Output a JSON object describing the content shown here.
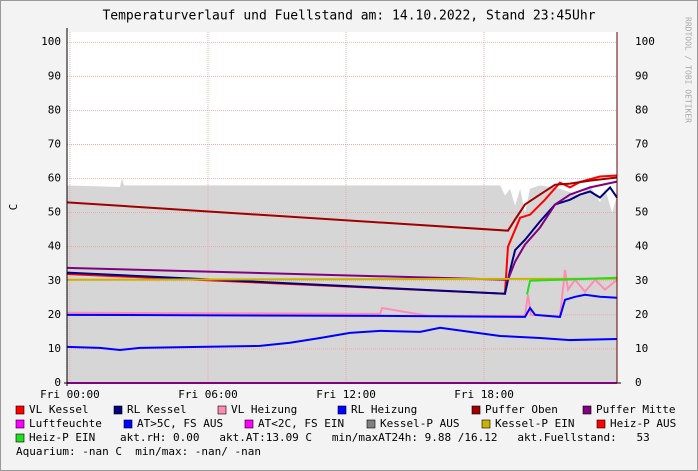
{
  "chart_data": {
    "type": "line",
    "title": "Temperaturverlauf und Fuellstand am: 14.10.2022, Stand 23:45Uhr",
    "watermark": "RRDTOOL / TOBI OETIKER",
    "ylabel": "C",
    "xlim": [
      -0.13,
      23.78
    ],
    "ylim": [
      0,
      103
    ],
    "xticks": [
      {
        "value": 0,
        "label": "Fri 00:00"
      },
      {
        "value": 6,
        "label": "Fri 06:00"
      },
      {
        "value": 12,
        "label": "Fri 12:00"
      },
      {
        "value": 18,
        "label": "Fri 18:00"
      }
    ],
    "yticks": [
      0,
      10,
      20,
      30,
      40,
      50,
      60,
      70,
      80,
      90,
      100
    ],
    "grid": true,
    "area": {
      "color": "#d6d6d6",
      "x": [
        -0.13,
        2.17,
        2.26,
        2.35,
        10,
        18.7,
        18.91,
        19.13,
        19.35,
        19.57,
        19.78,
        20,
        20.43,
        21.3,
        22.17,
        22.61,
        23.04,
        23.26,
        23.57,
        23.78
      ],
      "values": [
        58,
        57.5,
        60,
        58,
        58,
        58,
        55,
        57,
        52,
        57,
        50,
        57,
        58,
        57,
        55,
        58,
        53,
        57,
        50,
        55
      ]
    },
    "series": [
      {
        "name": "VL Kessel",
        "color": "#ff0000",
        "x": [
          -0.13,
          18.91,
          19.04,
          19.57,
          20,
          20.65,
          21.3,
          21.74,
          22.17,
          23.04,
          23.78
        ],
        "values": [
          32,
          26.2,
          40,
          48.5,
          49.4,
          53.8,
          58.8,
          57.4,
          59,
          60.6,
          60.9
        ]
      },
      {
        "name": "RL Kessel",
        "color": "#000080",
        "x": [
          -0.13,
          18.91,
          19.13,
          19.35,
          19.78,
          20.43,
          21.09,
          21.74,
          22.17,
          22.61,
          23.04,
          23.48,
          23.78
        ],
        "values": [
          32.4,
          26.2,
          33,
          39,
          42,
          47.4,
          52.4,
          53.8,
          55.3,
          56.2,
          54.4,
          57.4,
          54.4
        ]
      },
      {
        "name": "VL Heizung",
        "color": "#ff8cb4",
        "x": [
          -0.13,
          13.48,
          13.57,
          14.78,
          15.65,
          19.78,
          19.91,
          20.04,
          21.3,
          21.52,
          21.65,
          21.96,
          22.39,
          22.83,
          23.26,
          23.78
        ],
        "values": [
          20.6,
          20.3,
          22,
          20.6,
          19.7,
          19.7,
          25.9,
          20,
          19.4,
          33.2,
          27.4,
          30.3,
          26.8,
          30.3,
          27.4,
          30.3
        ]
      },
      {
        "name": "RL Heizung",
        "color": "#0000ff",
        "x": [
          -0.13,
          13.48,
          19.78,
          20,
          20.22,
          21.3,
          21.52,
          21.96,
          22.39,
          23.04,
          23.78
        ],
        "values": [
          20,
          19.7,
          19.4,
          22,
          20,
          19.4,
          24.4,
          25.3,
          25.9,
          25.3,
          25
        ]
      },
      {
        "name": "Puffer Oben",
        "color": "#a00000",
        "x": [
          -0.13,
          19.04,
          19.35,
          19.78,
          20.43,
          21.09,
          21.74,
          22.61,
          23.78
        ],
        "values": [
          53,
          44.7,
          48,
          52.4,
          55.3,
          58.2,
          58.5,
          59.4,
          60.3
        ]
      },
      {
        "name": "Puffer Mitte",
        "color": "#800080",
        "x": [
          -0.13,
          19.04,
          19.35,
          19.78,
          20.43,
          21.09,
          21.74,
          22.61,
          23.78
        ],
        "values": [
          33.8,
          30.3,
          35.6,
          40.6,
          45.6,
          52.4,
          55.3,
          57.4,
          59.1
        ]
      },
      {
        "name": "Luftfeuchte",
        "color": "#ff00ff",
        "x": [
          -0.13,
          23.78
        ],
        "values": [
          0,
          0
        ]
      },
      {
        "name": "AT>5C, FS AUS",
        "color": "#0000ff",
        "x": [
          -0.13,
          1.3,
          2.17,
          3.04,
          5.65,
          8.26,
          9.57,
          10.87,
          12.17,
          13.48,
          15.22,
          16.09,
          17.39,
          18.7,
          20.43,
          21.74,
          23.78
        ],
        "values": [
          10.6,
          10.3,
          9.7,
          10.3,
          10.6,
          10.9,
          11.8,
          13.2,
          14.7,
          15.3,
          15,
          16.2,
          15,
          13.8,
          13.2,
          12.6,
          12.9
        ]
      },
      {
        "name": "AT<2C, FS EIN",
        "color": "#ff00ff",
        "x": [],
        "values": []
      },
      {
        "name": "Kessel-P AUS",
        "color": "#808080",
        "x": [],
        "values": []
      },
      {
        "name": "Kessel-P EIN",
        "color": "#c8b400",
        "x": [
          -0.13,
          23.78
        ],
        "values": [
          30.3,
          30.6
        ]
      },
      {
        "name": "Heiz-P AUS",
        "color": "#ff0000",
        "x": [],
        "values": []
      },
      {
        "name": "Heiz-P EIN",
        "color": "#22dd22",
        "x": [
          19.87,
          20,
          23.78
        ],
        "values": [
          26,
          30,
          30.9
        ]
      }
    ],
    "notes": [
      "akt.rH: 0.00   akt.AT:13.09 C   min/maxAT24h: 9.88 /16.12   akt.Fuellstand:   53",
      "Aquarium: -nan C  min/max: -nan/ -nan"
    ]
  }
}
